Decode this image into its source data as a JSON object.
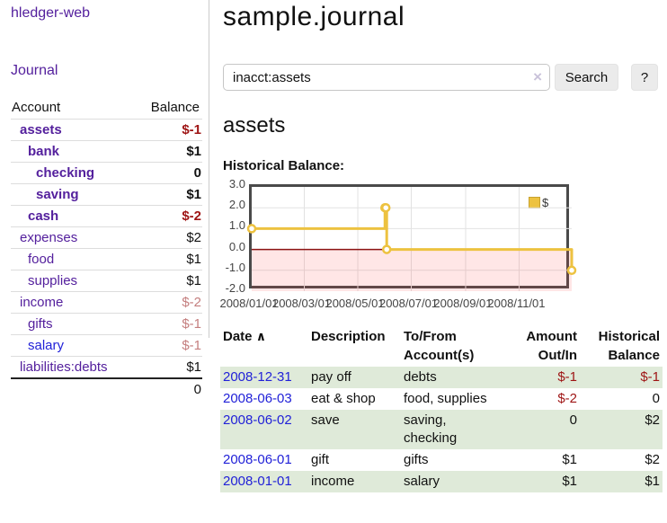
{
  "app_title": "hledger-web",
  "sidebar": {
    "journal_link": "Journal",
    "accounts": {
      "headers": {
        "account": "Account",
        "balance": "Balance"
      },
      "rows": [
        {
          "name": "assets",
          "indent": 1,
          "bold": true,
          "balance": "$-1",
          "balance_style": "negative-strong"
        },
        {
          "name": "bank",
          "indent": 2,
          "bold": true,
          "balance": "$1",
          "balance_style": "normal"
        },
        {
          "name": "checking",
          "indent": 3,
          "bold": true,
          "balance": "0",
          "balance_style": "normal"
        },
        {
          "name": "saving",
          "indent": 3,
          "bold": true,
          "balance": "$1",
          "balance_style": "normal"
        },
        {
          "name": "cash",
          "indent": 2,
          "bold": true,
          "balance": "$-2",
          "balance_style": "negative-strong"
        },
        {
          "name": "expenses",
          "indent": 1,
          "bold": false,
          "balance": "$2",
          "balance_style": "normal"
        },
        {
          "name": "food",
          "indent": 2,
          "bold": false,
          "balance": "$1",
          "balance_style": "normal"
        },
        {
          "name": "supplies",
          "indent": 2,
          "bold": false,
          "balance": "$1",
          "balance_style": "normal"
        },
        {
          "name": "income",
          "indent": 1,
          "bold": false,
          "balance": "$-2",
          "balance_style": "negative-faint"
        },
        {
          "name": "gifts",
          "indent": 2,
          "bold": false,
          "balance": "$-1",
          "balance_style": "negative-faint"
        },
        {
          "name": "salary",
          "indent": 2,
          "bold": false,
          "balance": "$-1",
          "balance_style": "negative-faint",
          "link_style": "blue"
        },
        {
          "name": "liabilities:debts",
          "indent": 1,
          "bold": false,
          "balance": "$1",
          "balance_style": "normal"
        }
      ],
      "total": "0"
    }
  },
  "main": {
    "title": "sample.journal",
    "search": {
      "value": "inacct:assets",
      "clear_icon": "×",
      "search_button": "Search",
      "help_button": "?"
    },
    "account_heading": "assets",
    "chart_heading": "Historical Balance:"
  },
  "chart_data": {
    "type": "line",
    "title": "Historical Balance",
    "step": true,
    "series": [
      {
        "name": "$",
        "color": "#edc240",
        "points": [
          {
            "date": "2008-01-01",
            "balance": 1
          },
          {
            "date": "2008-06-01",
            "balance": 2
          },
          {
            "date": "2008-06-02",
            "balance": 2
          },
          {
            "date": "2008-06-03",
            "balance": 0
          },
          {
            "date": "2008-12-31",
            "balance": -1
          }
        ]
      }
    ],
    "x_start": "2008-01-01",
    "x_range_days": 365,
    "x_ticks": [
      "2008/01/01",
      "2008/03/01",
      "2008/05/01",
      "2008/07/01",
      "2008/09/01",
      "2008/11/01"
    ],
    "y_ticks": [
      3.0,
      2.0,
      1.0,
      0.0,
      -1.0,
      -2.0
    ],
    "ylim": [
      -2,
      3
    ],
    "grid": true,
    "legend": {
      "label": "$",
      "position": "top-right"
    }
  },
  "register": {
    "headers": {
      "date": "Date",
      "sort_indicator": "∧",
      "description": "Description",
      "to_from_line1": "To/From",
      "to_from_line2": "Account(s)",
      "amount_line1": "Amount",
      "amount_line2": "Out/In",
      "balance_line1": "Historical",
      "balance_line2": "Balance"
    },
    "rows": [
      {
        "date": "2008-12-31",
        "description": "pay off",
        "to_from": "debts",
        "amount": "$-1",
        "amount_negative": true,
        "balance": "$-1",
        "balance_negative": true,
        "shaded": true
      },
      {
        "date": "2008-06-03",
        "description": "eat & shop",
        "to_from": "food, supplies",
        "amount": "$-2",
        "amount_negative": true,
        "balance": "0",
        "balance_negative": false,
        "shaded": false
      },
      {
        "date": "2008-06-02",
        "description": "save",
        "to_from": "saving, checking",
        "amount": "0",
        "amount_negative": false,
        "balance": "$2",
        "balance_negative": false,
        "shaded": true
      },
      {
        "date": "2008-06-01",
        "description": "gift",
        "to_from": "gifts",
        "amount": "$1",
        "amount_negative": false,
        "balance": "$2",
        "balance_negative": false,
        "shaded": false
      },
      {
        "date": "2008-01-01",
        "description": "income",
        "to_from": "salary",
        "amount": "$1",
        "amount_negative": false,
        "balance": "$1",
        "balance_negative": false,
        "shaded": true
      }
    ]
  },
  "colors": {
    "link_purple": "#54209d",
    "link_blue": "#2121d8",
    "negative_strong": "#9e1414",
    "negative_faint": "#c47e7e",
    "row_green": "#dfead9",
    "chart_line": "#edc240",
    "chart_marker_fill": "#ffffff",
    "chart_zero_line": "#8b1313",
    "chart_below_zero": "rgba(255,60,60,0.13)",
    "chart_grid": "#e2e2e2",
    "chart_border": "#4a4a4a"
  }
}
